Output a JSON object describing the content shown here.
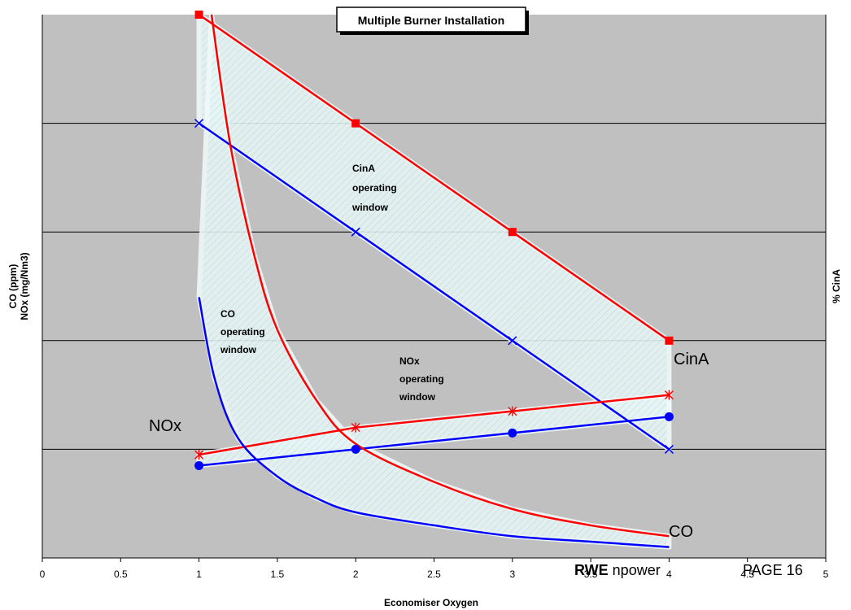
{
  "chart_data": {
    "type": "line",
    "title": "Multiple Burner Installation",
    "xlabel": "Economiser Oxygen",
    "ylabel_lines": [
      "CO (ppm)",
      "NOx (mg/Nm3)"
    ],
    "y2label": "% CinA",
    "xlim": [
      0,
      5
    ],
    "x_ticks": [
      "0",
      "0.5",
      "1",
      "1.5",
      "2",
      "2.5",
      "3",
      "3.5",
      "4",
      "4.5",
      "5"
    ],
    "grid": true,
    "colors": {
      "plot_bg": "#c0c0c0",
      "red": "#ff0000",
      "blue": "#0000ff",
      "band_fill": "#e8f8f8",
      "grid": "#000000"
    },
    "series": [
      {
        "name": "CinA",
        "role": "cina-upper",
        "color": "#ff0000",
        "marker": "square",
        "style": "straight",
        "x": [
          1,
          2,
          3,
          4
        ],
        "y": [
          5.0,
          4.0,
          3.0,
          2.0
        ]
      },
      {
        "role": "cina-lower",
        "color": "#0000ff",
        "marker": "x",
        "style": "straight",
        "x": [
          1,
          2,
          3,
          4
        ],
        "y": [
          4.0,
          3.0,
          2.0,
          1.0
        ]
      },
      {
        "name": "NOx",
        "role": "nox-upper",
        "color": "#ff0000",
        "marker": "asterisk",
        "style": "straight",
        "x": [
          1,
          2,
          3,
          4
        ],
        "y": [
          0.95,
          1.2,
          1.35,
          1.5
        ]
      },
      {
        "role": "nox-lower",
        "color": "#0000ff",
        "marker": "circle",
        "style": "straight",
        "x": [
          1,
          2,
          3,
          4
        ],
        "y": [
          0.85,
          1.0,
          1.15,
          1.3
        ]
      },
      {
        "name": "CO",
        "role": "co-upper",
        "color": "#ff0000",
        "marker": "none",
        "style": "smooth",
        "x": [
          1.08,
          1.2,
          1.35,
          1.5,
          1.75,
          2.0,
          2.5,
          3.0,
          3.5,
          4.0
        ],
        "y": [
          5.0,
          3.8,
          2.8,
          2.1,
          1.45,
          1.05,
          0.7,
          0.45,
          0.3,
          0.2
        ]
      },
      {
        "role": "co-lower",
        "color": "#0000ff",
        "marker": "none",
        "style": "smooth",
        "x": [
          1.0,
          1.1,
          1.25,
          1.5,
          1.75,
          2.0,
          2.5,
          3.0,
          3.5,
          4.0
        ],
        "y": [
          2.4,
          1.65,
          1.1,
          0.75,
          0.55,
          0.42,
          0.3,
          0.2,
          0.15,
          0.1
        ]
      }
    ],
    "windows": [
      {
        "name": "cina-window",
        "x": [
          1.0,
          2.0,
          3.0,
          4.0,
          4.0,
          3.0,
          2.0,
          1.0
        ],
        "y": [
          5.0,
          4.0,
          3.0,
          2.0,
          1.0,
          2.0,
          3.0,
          4.0
        ]
      },
      {
        "name": "nox-window",
        "x": [
          1.0,
          2.0,
          3.0,
          4.0,
          4.0,
          3.0,
          2.0,
          1.0
        ],
        "y": [
          0.95,
          1.2,
          1.35,
          1.5,
          1.3,
          1.15,
          1.0,
          0.85
        ]
      },
      {
        "name": "co-window",
        "x": [
          1.08,
          1.2,
          1.35,
          1.5,
          1.75,
          2.0,
          2.5,
          3.0,
          3.5,
          4.0,
          4.0,
          3.5,
          3.0,
          2.5,
          2.0,
          1.75,
          1.5,
          1.25,
          1.1,
          1.0
        ],
        "y": [
          5.0,
          3.8,
          2.8,
          2.1,
          1.45,
          1.05,
          0.7,
          0.45,
          0.3,
          0.2,
          0.1,
          0.15,
          0.2,
          0.3,
          0.42,
          0.55,
          0.75,
          1.1,
          1.65,
          2.4
        ]
      }
    ],
    "annotations": [
      {
        "name": "cina-window-label",
        "lines": [
          "CinA",
          "operating",
          "window"
        ]
      },
      {
        "name": "co-window-label",
        "lines": [
          "CO",
          "operating",
          "window"
        ]
      },
      {
        "name": "nox-window-label",
        "lines": [
          "NOx",
          "operating",
          "window"
        ]
      },
      {
        "name": "cina-series-label",
        "text": "CinA"
      },
      {
        "name": "nox-series-label",
        "text": "NOx"
      },
      {
        "name": "co-series-label",
        "text": "CO"
      }
    ]
  },
  "footer": {
    "brand_bold": "RWE",
    "brand_rest": " npower",
    "page": "PAGE 16"
  }
}
